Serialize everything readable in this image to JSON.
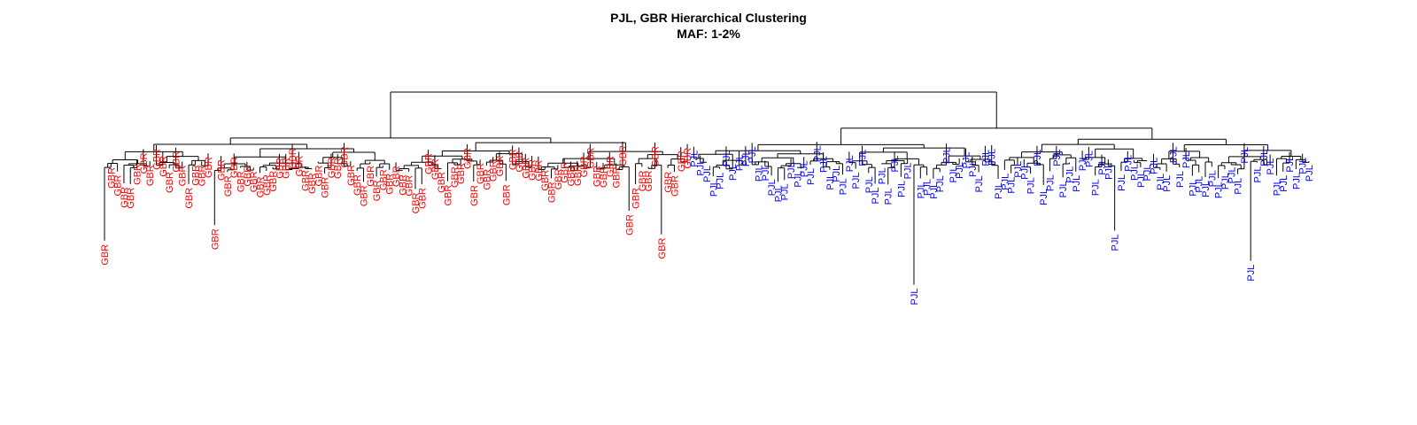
{
  "chart_data": {
    "type": "dendrogram",
    "title": "PJL, GBR Hierarchical Clustering",
    "subtitle": "MAF: 1-2%",
    "colors": {
      "GBR": "#ff0000",
      "PJL": "#0000ff"
    },
    "groups": [
      {
        "label": "GBR",
        "count": 91
      },
      {
        "label": "PJL",
        "count": 96
      }
    ],
    "root_merge_height": 1.0
  }
}
